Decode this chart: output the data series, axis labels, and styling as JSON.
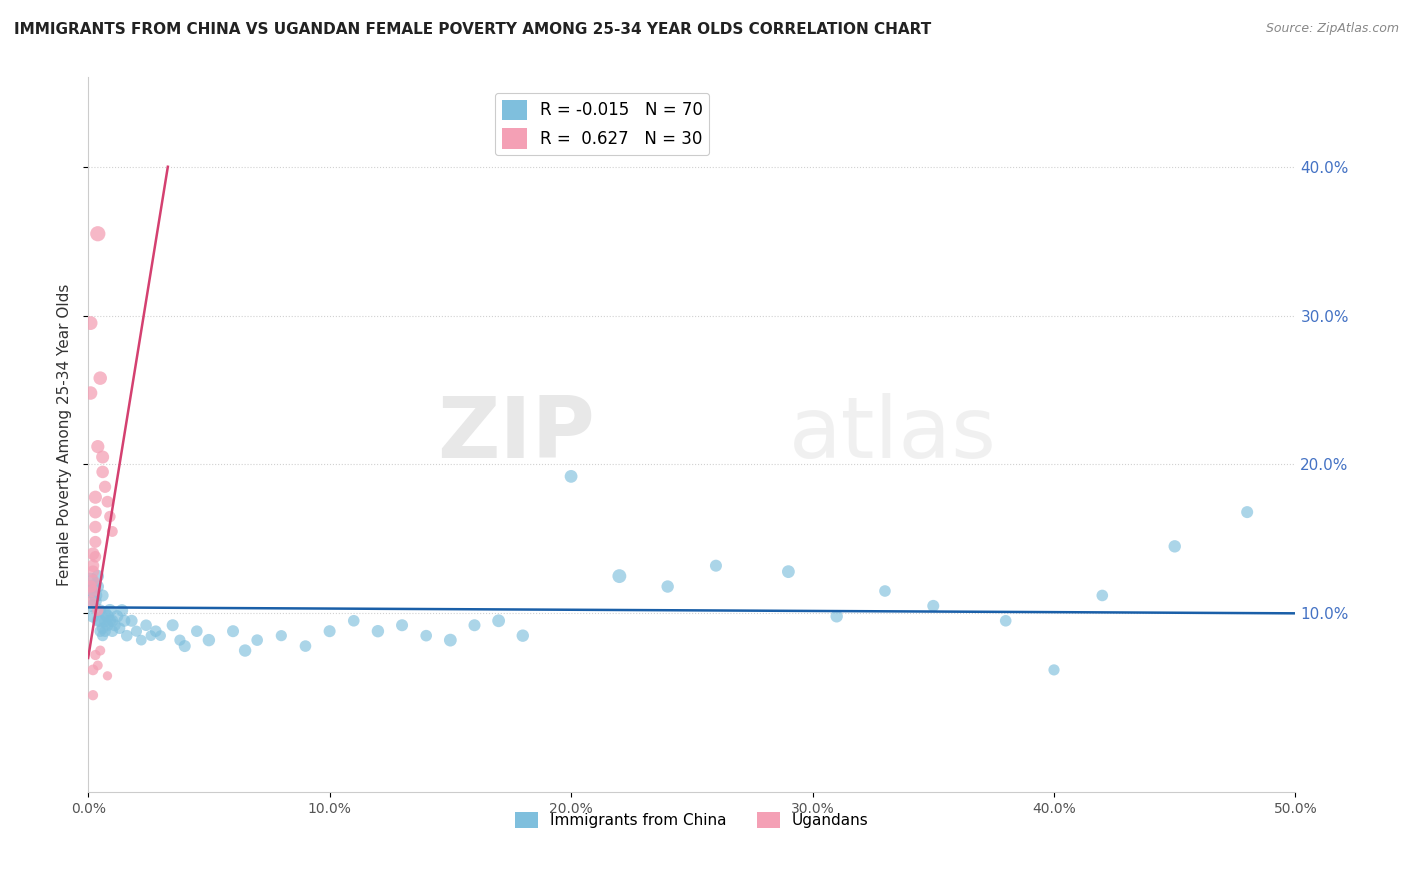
{
  "title": "IMMIGRANTS FROM CHINA VS UGANDAN FEMALE POVERTY AMONG 25-34 YEAR OLDS CORRELATION CHART",
  "source": "Source: ZipAtlas.com",
  "ylabel": "Female Poverty Among 25-34 Year Olds",
  "xlim": [
    0.0,
    0.5
  ],
  "ylim": [
    -0.02,
    0.46
  ],
  "xticks": [
    0.0,
    0.1,
    0.2,
    0.3,
    0.4,
    0.5
  ],
  "yticks": [
    0.1,
    0.2,
    0.3,
    0.4
  ],
  "xtick_labels": [
    "0.0%",
    "10.0%",
    "20.0%",
    "30.0%",
    "40.0%",
    "50.0%"
  ],
  "ytick_labels": [
    "10.0%",
    "20.0%",
    "30.0%",
    "40.0%"
  ],
  "blue_color": "#7fbfdd",
  "pink_color": "#f4a0b5",
  "blue_line_color": "#1a5fa8",
  "pink_line_color": "#d44070",
  "legend_blue_r": "-0.015",
  "legend_blue_n": "70",
  "legend_pink_r": "0.627",
  "legend_pink_n": "30",
  "watermark_zip": "ZIP",
  "watermark_atlas": "atlas",
  "blue_dots": [
    [
      0.001,
      0.122
    ],
    [
      0.001,
      0.115
    ],
    [
      0.002,
      0.118
    ],
    [
      0.002,
      0.105
    ],
    [
      0.002,
      0.098
    ],
    [
      0.003,
      0.112
    ],
    [
      0.003,
      0.108
    ],
    [
      0.004,
      0.125
    ],
    [
      0.004,
      0.095
    ],
    [
      0.004,
      0.118
    ],
    [
      0.005,
      0.088
    ],
    [
      0.005,
      0.102
    ],
    [
      0.005,
      0.095
    ],
    [
      0.006,
      0.09
    ],
    [
      0.006,
      0.085
    ],
    [
      0.006,
      0.112
    ],
    [
      0.007,
      0.1
    ],
    [
      0.007,
      0.088
    ],
    [
      0.007,
      0.095
    ],
    [
      0.008,
      0.098
    ],
    [
      0.008,
      0.092
    ],
    [
      0.009,
      0.095
    ],
    [
      0.009,
      0.102
    ],
    [
      0.01,
      0.095
    ],
    [
      0.01,
      0.088
    ],
    [
      0.011,
      0.092
    ],
    [
      0.012,
      0.098
    ],
    [
      0.013,
      0.09
    ],
    [
      0.014,
      0.102
    ],
    [
      0.015,
      0.095
    ],
    [
      0.016,
      0.085
    ],
    [
      0.018,
      0.095
    ],
    [
      0.02,
      0.088
    ],
    [
      0.022,
      0.082
    ],
    [
      0.024,
      0.092
    ],
    [
      0.026,
      0.085
    ],
    [
      0.028,
      0.088
    ],
    [
      0.03,
      0.085
    ],
    [
      0.035,
      0.092
    ],
    [
      0.038,
      0.082
    ],
    [
      0.04,
      0.078
    ],
    [
      0.045,
      0.088
    ],
    [
      0.05,
      0.082
    ],
    [
      0.06,
      0.088
    ],
    [
      0.065,
      0.075
    ],
    [
      0.07,
      0.082
    ],
    [
      0.08,
      0.085
    ],
    [
      0.09,
      0.078
    ],
    [
      0.1,
      0.088
    ],
    [
      0.11,
      0.095
    ],
    [
      0.12,
      0.088
    ],
    [
      0.13,
      0.092
    ],
    [
      0.14,
      0.085
    ],
    [
      0.15,
      0.082
    ],
    [
      0.16,
      0.092
    ],
    [
      0.17,
      0.095
    ],
    [
      0.18,
      0.085
    ],
    [
      0.2,
      0.192
    ],
    [
      0.22,
      0.125
    ],
    [
      0.24,
      0.118
    ],
    [
      0.26,
      0.132
    ],
    [
      0.29,
      0.128
    ],
    [
      0.31,
      0.098
    ],
    [
      0.33,
      0.115
    ],
    [
      0.35,
      0.105
    ],
    [
      0.38,
      0.095
    ],
    [
      0.4,
      0.062
    ],
    [
      0.42,
      0.112
    ],
    [
      0.45,
      0.145
    ],
    [
      0.48,
      0.168
    ]
  ],
  "pink_dots": [
    [
      0.001,
      0.118
    ],
    [
      0.001,
      0.108
    ],
    [
      0.001,
      0.295
    ],
    [
      0.001,
      0.248
    ],
    [
      0.002,
      0.14
    ],
    [
      0.002,
      0.132
    ],
    [
      0.002,
      0.128
    ],
    [
      0.002,
      0.122
    ],
    [
      0.002,
      0.115
    ],
    [
      0.002,
      0.062
    ],
    [
      0.002,
      0.045
    ],
    [
      0.003,
      0.178
    ],
    [
      0.003,
      0.168
    ],
    [
      0.003,
      0.158
    ],
    [
      0.003,
      0.148
    ],
    [
      0.003,
      0.138
    ],
    [
      0.003,
      0.072
    ],
    [
      0.004,
      0.355
    ],
    [
      0.004,
      0.212
    ],
    [
      0.004,
      0.102
    ],
    [
      0.004,
      0.065
    ],
    [
      0.005,
      0.258
    ],
    [
      0.005,
      0.075
    ],
    [
      0.006,
      0.205
    ],
    [
      0.006,
      0.195
    ],
    [
      0.007,
      0.185
    ],
    [
      0.008,
      0.175
    ],
    [
      0.008,
      0.058
    ],
    [
      0.009,
      0.165
    ],
    [
      0.01,
      0.155
    ]
  ],
  "blue_dot_sizes": [
    130,
    110,
    100,
    90,
    85,
    100,
    85,
    80,
    75,
    80,
    70,
    75,
    80,
    70,
    65,
    75,
    85,
    70,
    80,
    85,
    75,
    80,
    85,
    75,
    70,
    75,
    80,
    70,
    80,
    75,
    70,
    75,
    65,
    60,
    70,
    60,
    70,
    60,
    75,
    65,
    75,
    70,
    80,
    75,
    80,
    70,
    65,
    70,
    75,
    70,
    80,
    75,
    70,
    85,
    75,
    85,
    80,
    85,
    100,
    80,
    75,
    85,
    80,
    70,
    75,
    70,
    65,
    70,
    80,
    75
  ],
  "pink_dot_sizes": [
    80,
    75,
    100,
    95,
    85,
    82,
    80,
    78,
    75,
    60,
    55,
    90,
    85,
    80,
    75,
    70,
    55,
    120,
    90,
    65,
    50,
    95,
    52,
    88,
    82,
    78,
    72,
    45,
    68,
    62
  ]
}
